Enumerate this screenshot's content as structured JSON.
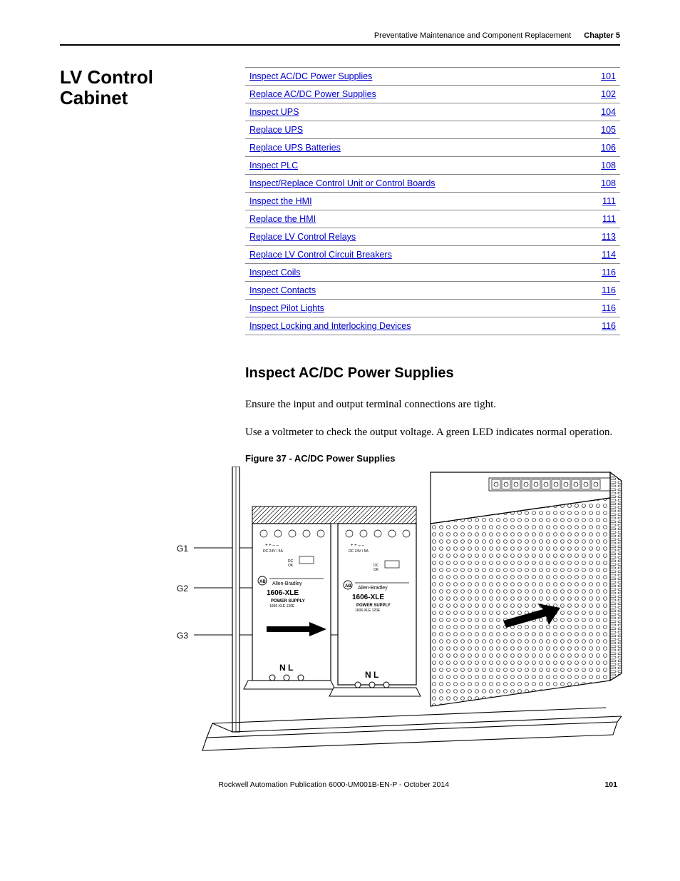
{
  "header": {
    "title": "Preventative Maintenance and Component Replacement",
    "chapter": "Chapter 5"
  },
  "section_title": "LV Control Cabinet",
  "toc": [
    {
      "label": "Inspect AC/DC Power Supplies",
      "page": "101"
    },
    {
      "label": "Replace AC/DC Power Supplies",
      "page": "102"
    },
    {
      "label": "Inspect UPS",
      "page": "104"
    },
    {
      "label": "Replace UPS",
      "page": "105"
    },
    {
      "label": "Replace UPS Batteries",
      "page": "106"
    },
    {
      "label": "Inspect PLC",
      "page": "108"
    },
    {
      "label": "Inspect/Replace Control Unit or Control Boards",
      "page": "108"
    },
    {
      "label": "Inspect the HMI",
      "page": "111"
    },
    {
      "label": "Replace the HMI",
      "page": "111"
    },
    {
      "label": "Replace LV Control Relays",
      "page": "113"
    },
    {
      "label": "Replace LV Control Circuit Breakers",
      "page": "114"
    },
    {
      "label": "Inspect Coils",
      "page": "116"
    },
    {
      "label": "Inspect Contacts",
      "page": "116"
    },
    {
      "label": "Inspect Pilot Lights",
      "page": "116"
    },
    {
      "label": "Inspect Locking and Interlocking Devices",
      "page": "116"
    }
  ],
  "subsection": {
    "heading": "Inspect AC/DC Power Supplies",
    "para1": "Ensure the input and output terminal connections are tight.",
    "para2": "Use a voltmeter to check the output voltage. A green LED indicates normal operation.",
    "fig_caption": "Figure 37 - AC/DC Power Supplies"
  },
  "figure_labels": {
    "g1": "G1",
    "g2": "G2",
    "g3": "G3",
    "nl1": "N  L",
    "nl2": "N  L",
    "psu_brand": "Allen-Bradley",
    "psu_model": "1606-XLE",
    "psu_sub": "POWER SUPPLY"
  },
  "footer": {
    "pub": "Rockwell Automation Publication 6000-UM001B-EN-P - October 2014",
    "page": "101"
  },
  "colors": {
    "link": "#0000cc",
    "rule": "#000000",
    "toc_border": "#888888"
  }
}
